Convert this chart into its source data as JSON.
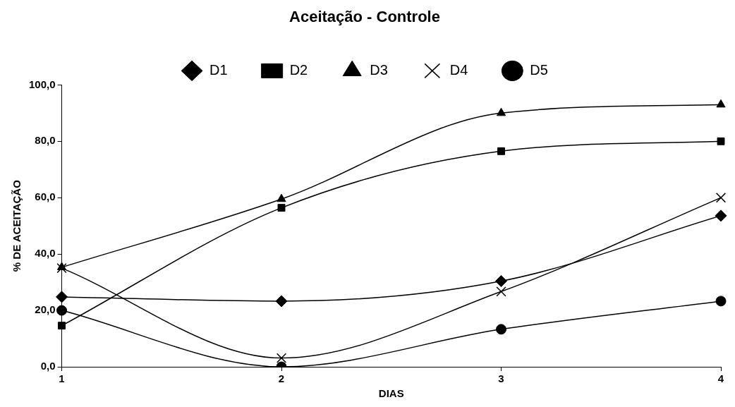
{
  "chart_data": {
    "type": "line",
    "title": "Aceitação - Controle",
    "xlabel": "DIAS",
    "ylabel": "% DE ACEITAÇÃO",
    "categories": [
      "1",
      "2",
      "3",
      "4"
    ],
    "series": [
      {
        "name": "D1",
        "color": "#000000",
        "marker": "diamond",
        "values": [
          24.8,
          23.3,
          30.4,
          53.6
        ]
      },
      {
        "name": "D2",
        "color": "#000000",
        "marker": "square",
        "values": [
          14.6,
          56.4,
          76.5,
          80.0
        ]
      },
      {
        "name": "D3",
        "color": "#000000",
        "marker": "triangle",
        "values": [
          35.3,
          59.5,
          90.0,
          93.0
        ]
      },
      {
        "name": "D4",
        "color": "#000000",
        "marker": "cross",
        "values": [
          35.0,
          3.1,
          26.7,
          60.0
        ]
      },
      {
        "name": "D5",
        "color": "#000000",
        "marker": "circle",
        "values": [
          20.0,
          0.0,
          13.3,
          23.3
        ]
      }
    ],
    "ylim": [
      0,
      100
    ],
    "yticks": [
      {
        "value": 0,
        "label": "0,0"
      },
      {
        "value": 20,
        "label": "20,0"
      },
      {
        "value": 40,
        "label": "40,0"
      },
      {
        "value": 60,
        "label": "60,0"
      },
      {
        "value": 80,
        "label": "80,0"
      },
      {
        "value": 100,
        "label": "100,0"
      }
    ],
    "grid": false,
    "legend": "top",
    "line_style": "solid"
  }
}
